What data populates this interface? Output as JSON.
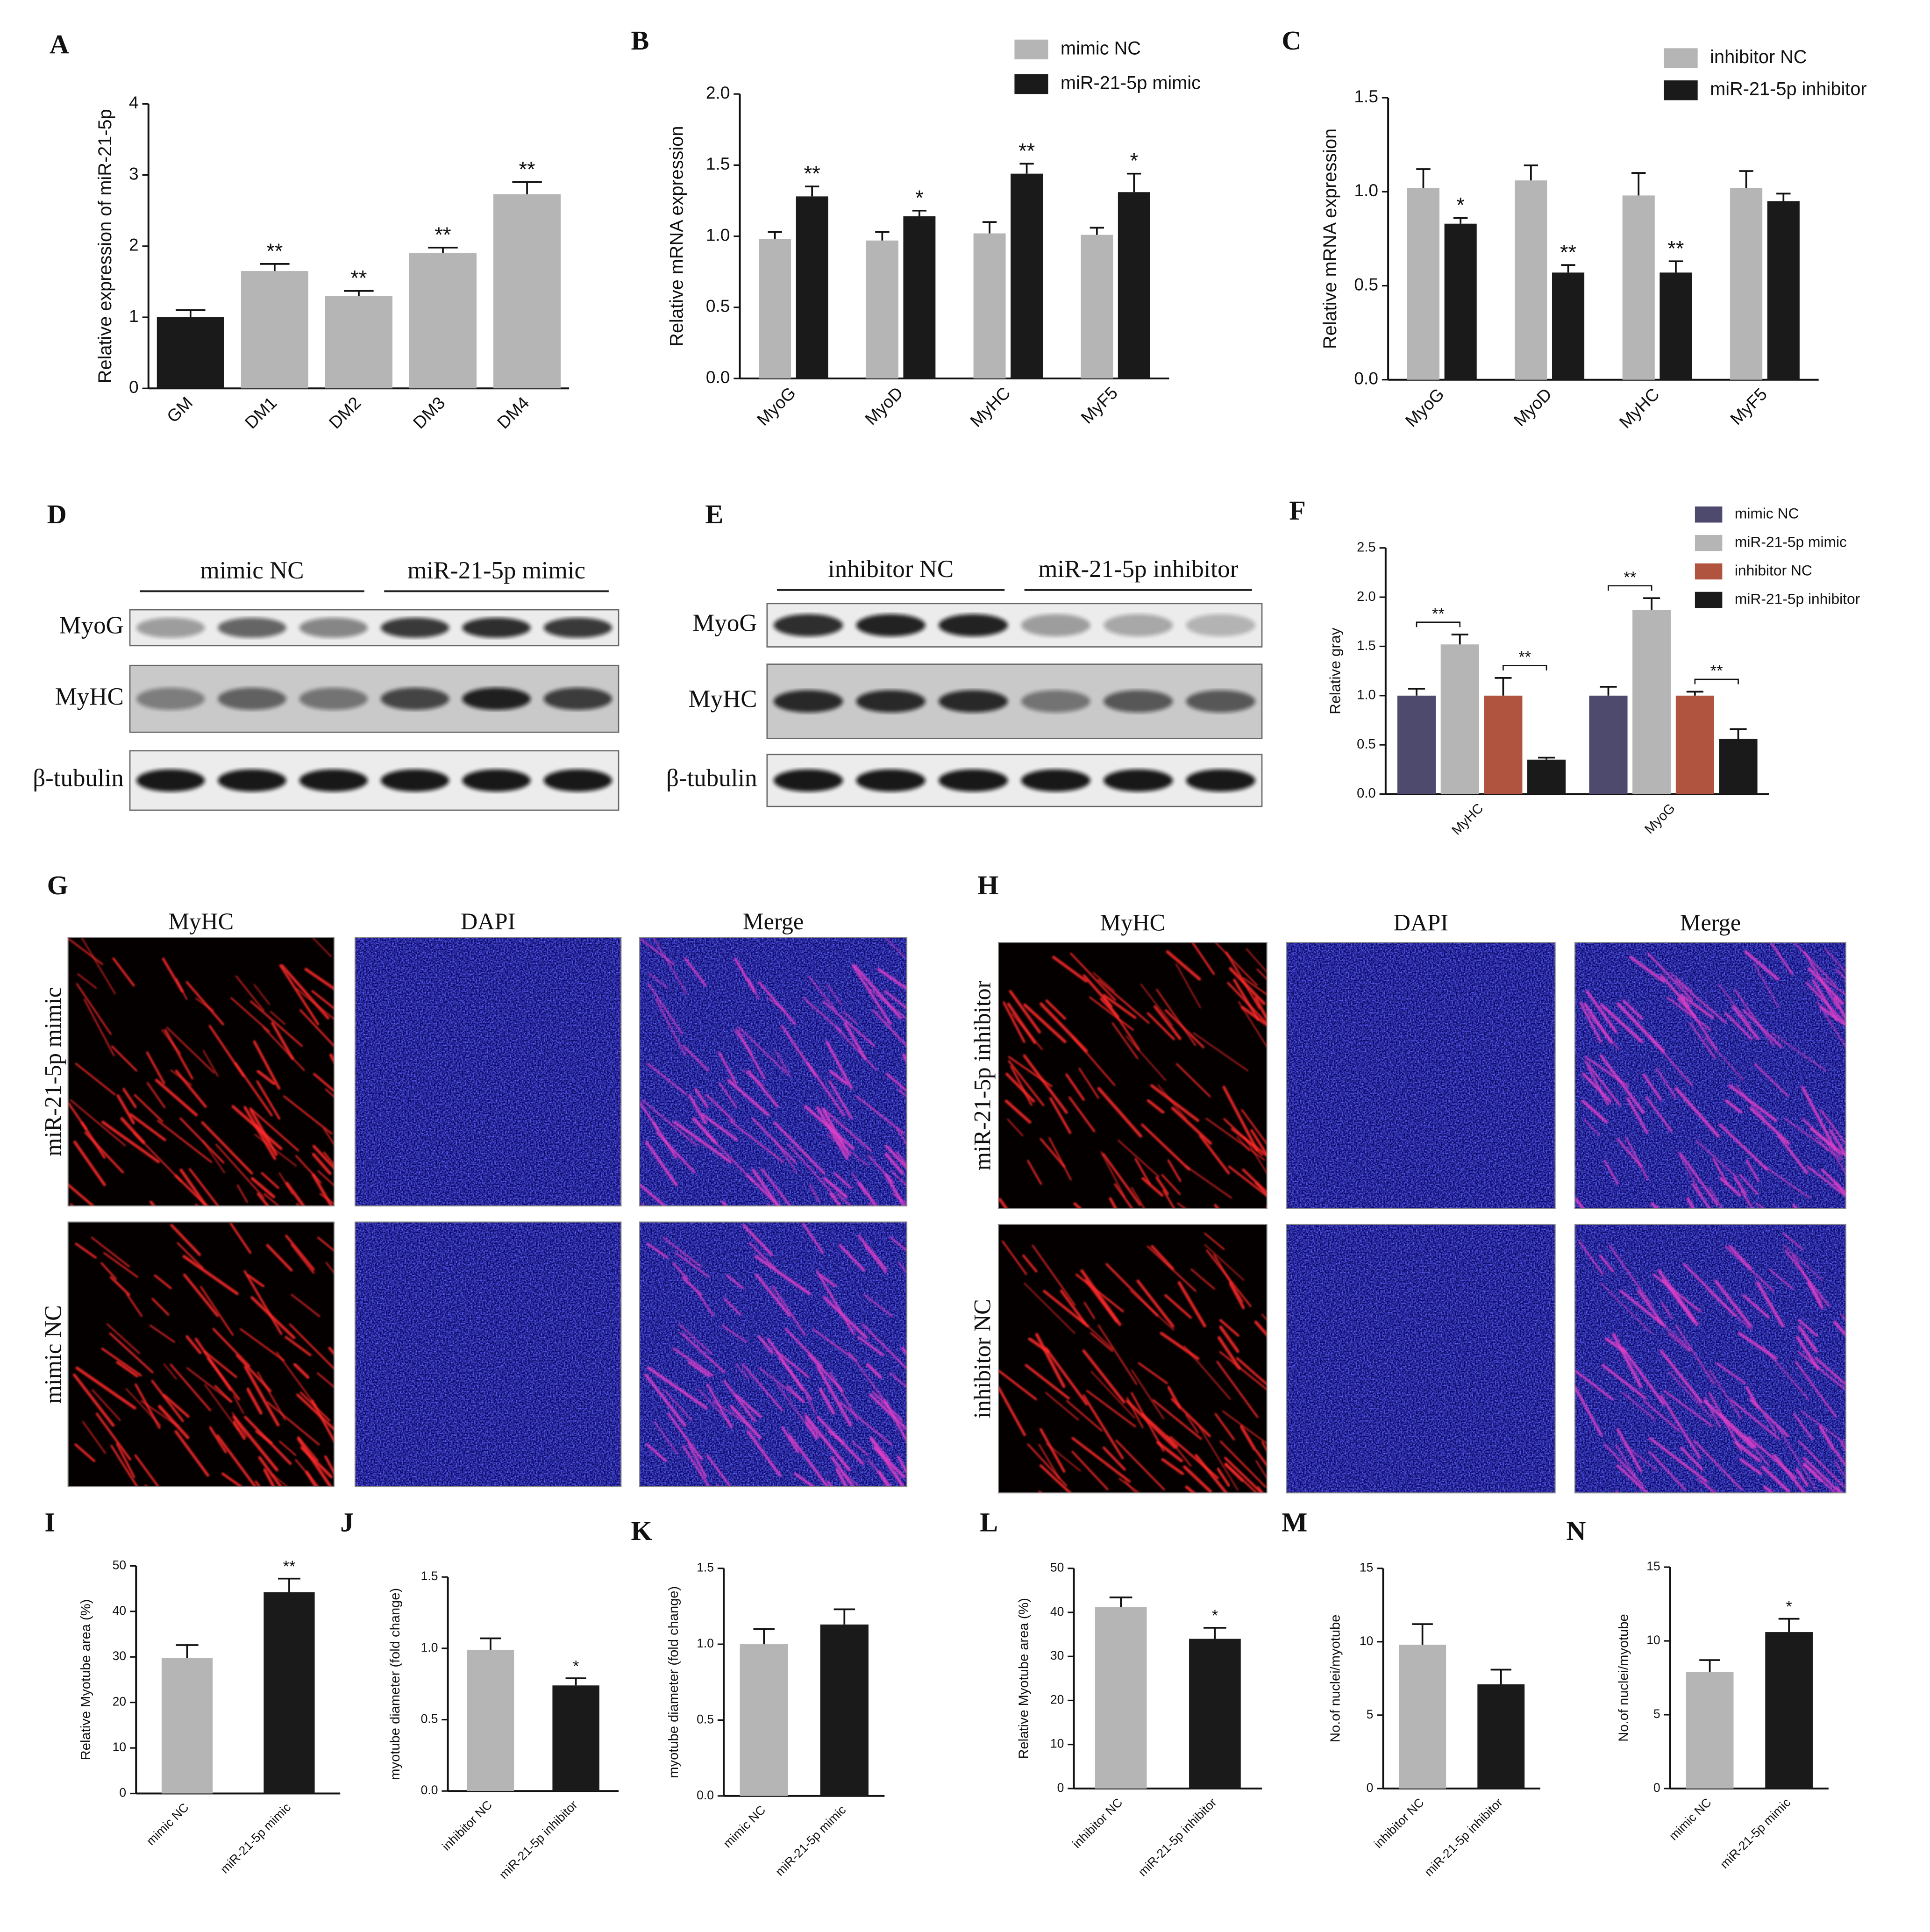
{
  "chart_data": [
    {
      "panel": "A",
      "type": "bar",
      "ylabel": "Relative expression of miR-21-5p",
      "categories": [
        "GM",
        "DM1",
        "DM2",
        "DM3",
        "DM4"
      ],
      "values": [
        1.0,
        1.65,
        1.3,
        1.9,
        2.73
      ],
      "errors": [
        0.1,
        0.1,
        0.07,
        0.08,
        0.17
      ],
      "colors": [
        "#1a1a1a",
        "#b5b5b5",
        "#b5b5b5",
        "#b5b5b5",
        "#b5b5b5"
      ],
      "annotations": [
        null,
        "**",
        "**",
        "**",
        "**"
      ],
      "ylim": [
        0,
        4
      ],
      "yticks": [
        0,
        1,
        2,
        3,
        4
      ]
    },
    {
      "panel": "B",
      "type": "bar",
      "ylabel": "Relative mRNA expression",
      "categories": [
        "MyoG",
        "MyoD",
        "MyHC",
        "MyF5"
      ],
      "series": [
        {
          "name": "mimic NC",
          "color": "#b5b5b5",
          "values": [
            0.98,
            0.97,
            1.02,
            1.01
          ],
          "errors": [
            0.05,
            0.06,
            0.08,
            0.05
          ],
          "annotations": [
            null,
            null,
            null,
            null
          ]
        },
        {
          "name": "miR-21-5p mimic",
          "color": "#1a1a1a",
          "values": [
            1.28,
            1.14,
            1.44,
            1.31
          ],
          "errors": [
            0.07,
            0.04,
            0.07,
            0.13
          ],
          "annotations": [
            "**",
            "*",
            "**",
            "*"
          ]
        }
      ],
      "ylim": [
        0,
        2
      ],
      "yticks": [
        {
          "value": 0,
          "label": "0.0"
        },
        0.5,
        {
          "value": 1,
          "label": "1.0"
        },
        1.5,
        {
          "value": 2,
          "label": "2.0"
        }
      ]
    },
    {
      "panel": "C",
      "type": "bar",
      "ylabel": "Relative mRNA expression",
      "categories": [
        "MyoG",
        "MyoD",
        "MyHC",
        "MyF5"
      ],
      "series": [
        {
          "name": "inhibitor NC",
          "color": "#b5b5b5",
          "values": [
            1.02,
            1.06,
            0.98,
            1.02
          ],
          "errors": [
            0.1,
            0.08,
            0.12,
            0.09
          ],
          "annotations": [
            null,
            null,
            null,
            null
          ]
        },
        {
          "name": "miR-21-5p inhibitor",
          "color": "#1a1a1a",
          "values": [
            0.83,
            0.57,
            0.57,
            0.95
          ],
          "errors": [
            0.03,
            0.04,
            0.06,
            0.04
          ],
          "annotations": [
            "*",
            "**",
            "**",
            null
          ]
        }
      ],
      "ylim": [
        0,
        1.5
      ],
      "yticks": [
        {
          "value": 0,
          "label": "0.0"
        },
        0.5,
        {
          "value": 1,
          "label": "1.0"
        },
        1.5
      ]
    },
    {
      "panel": "F",
      "type": "bar",
      "ylabel": "Relative gray",
      "categories": [
        "MyHC",
        "MyoG"
      ],
      "series": [
        {
          "name": "mimic NC",
          "color": "#4e4a6e",
          "values": [
            1.0,
            1.0
          ],
          "errors": [
            0.07,
            0.09
          ],
          "annotations": [
            null,
            null
          ]
        },
        {
          "name": "miR-21-5p mimic",
          "color": "#b5b5b5",
          "values": [
            1.52,
            1.87
          ],
          "errors": [
            0.1,
            0.12
          ],
          "annotations": [
            "**",
            "**"
          ]
        },
        {
          "name": "inhibitor NC",
          "color": "#b0533f",
          "values": [
            1.0,
            1.0
          ],
          "errors": [
            0.18,
            0.04
          ],
          "annotations": [
            null,
            null
          ]
        },
        {
          "name": "miR-21-5p inhibitor",
          "color": "#1a1a1a",
          "values": [
            0.35,
            0.56
          ],
          "errors": [
            0.02,
            0.1
          ],
          "annotations": [
            "**",
            "**"
          ]
        }
      ],
      "ylim": [
        0,
        2.5
      ],
      "yticks": [
        {
          "value": 0,
          "label": "0.0"
        },
        0.5,
        {
          "value": 1,
          "label": "1.0"
        },
        1.5,
        {
          "value": 2,
          "label": "2.0"
        },
        2.5
      ]
    },
    {
      "panel": "I",
      "type": "bar",
      "ylabel": "Relative Myotube area (%)",
      "categories": [
        "mimic NC",
        "miR-21-5p mimic"
      ],
      "values": [
        29.8,
        44.2
      ],
      "errors": [
        2.8,
        3.0
      ],
      "colors": [
        "#b5b5b5",
        "#1a1a1a"
      ],
      "annotations": [
        null,
        "**"
      ],
      "ylim": [
        0,
        50
      ],
      "yticks": [
        0,
        10,
        20,
        30,
        40,
        50
      ]
    },
    {
      "panel": "J",
      "type": "bar",
      "ylabel": "myotube diameter (fold change)",
      "categories": [
        "inhibitor NC",
        "miR-21-5p inhibitor"
      ],
      "values": [
        0.99,
        0.74
      ],
      "errors": [
        0.08,
        0.05
      ],
      "colors": [
        "#b5b5b5",
        "#1a1a1a"
      ],
      "annotations": [
        null,
        "*"
      ],
      "ylim": [
        0,
        1.5
      ],
      "yticks": [
        {
          "value": 0,
          "label": "0.0"
        },
        0.5,
        {
          "value": 1,
          "label": "1.0"
        },
        1.5
      ]
    },
    {
      "panel": "K",
      "type": "bar",
      "ylabel": "myotube diameter (fold change)",
      "categories": [
        "mimic NC",
        "miR-21-5p mimic"
      ],
      "values": [
        1.0,
        1.13
      ],
      "errors": [
        0.1,
        0.1
      ],
      "colors": [
        "#b5b5b5",
        "#1a1a1a"
      ],
      "annotations": [
        null,
        null
      ],
      "ylim": [
        0,
        1.5
      ],
      "yticks": [
        {
          "value": 0,
          "label": "0.0"
        },
        0.5,
        {
          "value": 1,
          "label": "1.0"
        },
        1.5
      ]
    },
    {
      "panel": "L",
      "type": "bar",
      "ylabel": "Relative Myotube area (%)",
      "categories": [
        "inhibitor NC",
        "miR-21-5p inhibitor"
      ],
      "values": [
        41.2,
        34.0
      ],
      "errors": [
        2.2,
        2.5
      ],
      "colors": [
        "#b5b5b5",
        "#1a1a1a"
      ],
      "annotations": [
        null,
        "*"
      ],
      "ylim": [
        0,
        50
      ],
      "yticks": [
        0,
        10,
        20,
        30,
        40,
        50
      ]
    },
    {
      "panel": "M",
      "type": "bar",
      "ylabel": "No.of nuclei/myotube",
      "categories": [
        "inhibitor NC",
        "miR-21-5p inhibitor"
      ],
      "values": [
        9.8,
        7.1
      ],
      "errors": [
        1.4,
        1.0
      ],
      "colors": [
        "#b5b5b5",
        "#1a1a1a"
      ],
      "annotations": [
        null,
        null
      ],
      "ylim": [
        0,
        15
      ],
      "yticks": [
        0,
        5,
        10,
        15
      ]
    },
    {
      "panel": "N",
      "type": "bar",
      "ylabel": "No.of nuclei/myotube",
      "categories": [
        "mimic NC",
        "miR-21-5p mimic"
      ],
      "values": [
        7.9,
        10.6
      ],
      "errors": [
        0.8,
        0.9
      ],
      "colors": [
        "#b5b5b5",
        "#1a1a1a"
      ],
      "annotations": [
        null,
        "*"
      ],
      "ylim": [
        0,
        15
      ],
      "yticks": [
        0,
        5,
        10,
        15
      ]
    }
  ],
  "blots": [
    {
      "panel": "D",
      "groups": [
        "mimic NC",
        "miR-21-5p mimic"
      ],
      "rows": [
        "MyoG",
        "MyHC",
        "β-tubulin"
      ]
    },
    {
      "panel": "E",
      "groups": [
        "inhibitor NC",
        "miR-21-5p inhibitor"
      ],
      "rows": [
        "MyoG",
        "MyHC",
        "β-tubulin"
      ]
    }
  ],
  "micrographs": [
    {
      "panel": "G",
      "columns": [
        "MyHC",
        "DAPI",
        "Merge"
      ],
      "rows": [
        "miR-21-5p mimic",
        "mimic NC"
      ]
    },
    {
      "panel": "H",
      "columns": [
        "MyHC",
        "DAPI",
        "Merge"
      ],
      "rows": [
        "miR-21-5p inhibitor",
        "inhibitor NC"
      ]
    }
  ]
}
